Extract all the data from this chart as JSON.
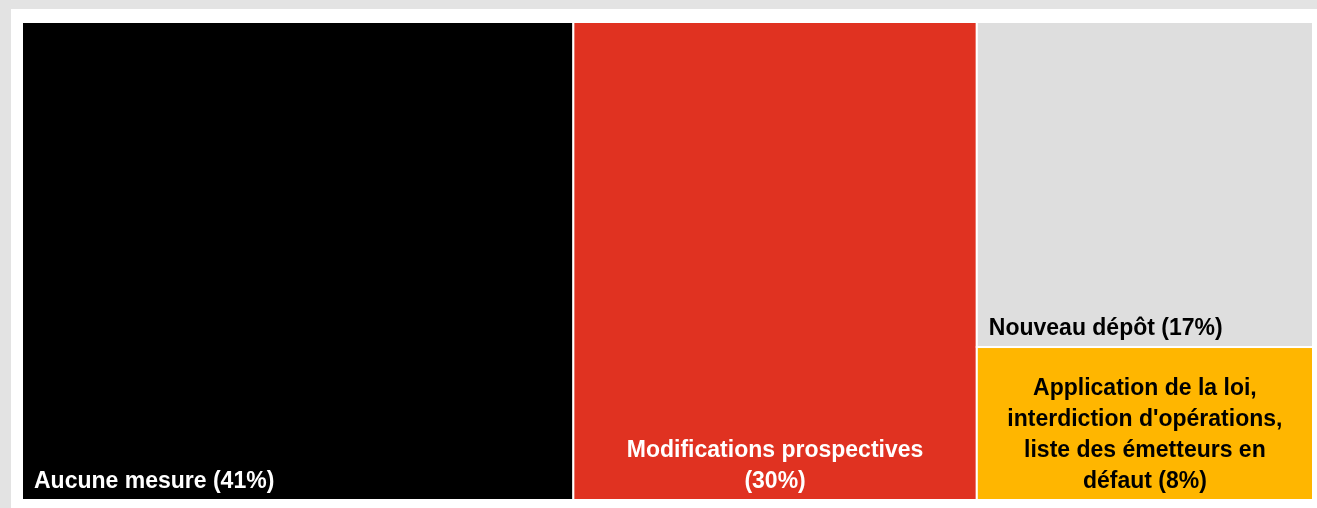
{
  "chart_data": {
    "type": "other",
    "categories": [
      "Aucune mesure",
      "Modifications prospectives",
      "Nouveau dépôt",
      "Application de la loi, interdiction d'opérations, liste des émetteurs en défaut"
    ],
    "values": [
      41,
      30,
      17,
      8
    ],
    "value_labels": [
      "(41%)",
      "(30%)",
      "(17%)",
      "(8%)"
    ],
    "colors": [
      "#000000",
      "#e03221",
      "#dedede",
      "#ffb600"
    ]
  }
}
